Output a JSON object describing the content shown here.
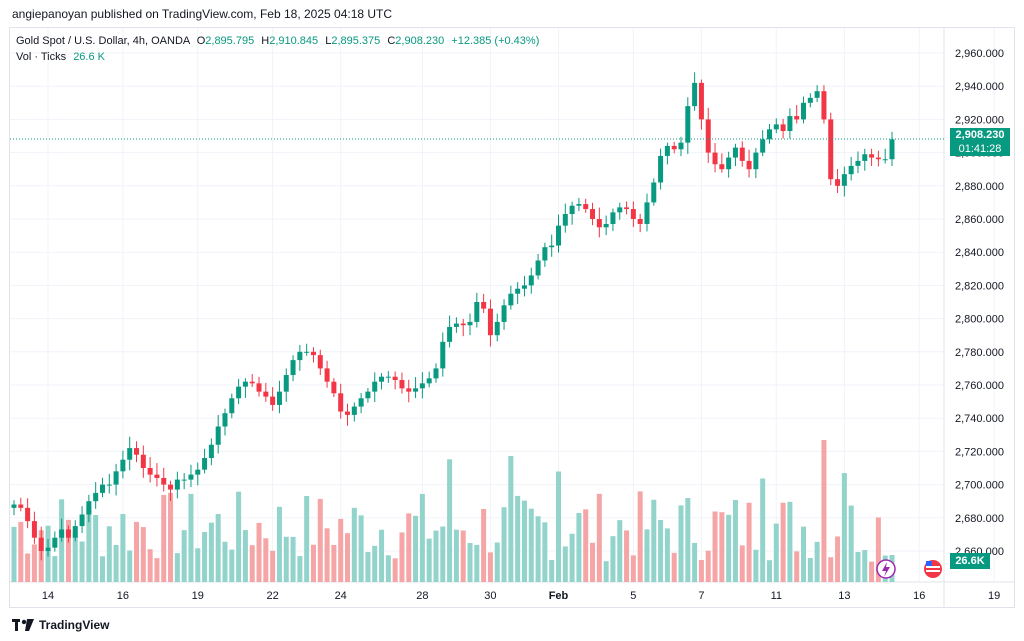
{
  "header": {
    "published_by": "angiepanoyan published on TradingView.com, Feb 18, 2025 04:18 UTC"
  },
  "legend": {
    "symbol": "Gold Spot / U.S. Dollar, 4h, OANDA",
    "o_label": "O",
    "o_value": "2,895.795",
    "h_label": "H",
    "h_value": "2,910.845",
    "l_label": "L",
    "l_value": "2,895.375",
    "c_label": "C",
    "c_value": "2,908.230",
    "change": "+12.385 (+0.43%)",
    "vol_label": "Vol · Ticks",
    "vol_value": "26.6 K"
  },
  "price_tag": {
    "price": "2,908.230",
    "countdown": "01:41:28"
  },
  "vol_tag": "26.6K",
  "footer": {
    "brand": "TradingView"
  },
  "colors": {
    "up": "#089981",
    "down": "#f23645",
    "vol_up": "#92d3cb",
    "vol_down": "#f5a5a5"
  },
  "chart_data": {
    "type": "candlestick",
    "title": "Gold Spot / U.S. Dollar, 4h, OANDA",
    "ylim": [
      2640,
      2970
    ],
    "y_ticks": [
      "2,960.000",
      "2,940.000",
      "2,920.000",
      "2,900.000",
      "2,880.000",
      "2,860.000",
      "2,840.000",
      "2,820.000",
      "2,800.000",
      "2,780.000",
      "2,760.000",
      "2,740.000",
      "2,720.000",
      "2,700.000",
      "2,680.000",
      "2,660.000"
    ],
    "y_tick_values": [
      2960,
      2940,
      2920,
      2900,
      2880,
      2860,
      2840,
      2820,
      2800,
      2780,
      2760,
      2740,
      2720,
      2700,
      2680,
      2660
    ],
    "x_ticks": [
      "14",
      "16",
      "19",
      "22",
      "24",
      "28",
      "30",
      "Feb",
      "5",
      "7",
      "11",
      "13",
      "16",
      "19"
    ],
    "x_tick_index": [
      5,
      16,
      27,
      38,
      48,
      60,
      70,
      80,
      91,
      101,
      112,
      122,
      133,
      144
    ],
    "current_price": 2908.23,
    "ohlc_anchor_closes": [
      2688,
      2686,
      2678,
      2668,
      2660,
      2662,
      2668,
      2673,
      2668,
      2675,
      2682,
      2690,
      2695,
      2700,
      2700,
      2708,
      2715,
      2722,
      2718,
      2710,
      2706,
      2704,
      2700,
      2697,
      2703,
      2703,
      2706,
      2709,
      2716,
      2724,
      2735,
      2743,
      2752,
      2759,
      2762,
      2761,
      2756,
      2753,
      2748,
      2756,
      2766,
      2775,
      2780,
      2780,
      2778,
      2770,
      2762,
      2755,
      2744,
      2742,
      2747,
      2752,
      2756,
      2762,
      2765,
      2765,
      2763,
      2758,
      2756,
      2758,
      2761,
      2764,
      2770,
      2786,
      2795,
      2797,
      2796,
      2798,
      2810,
      2806,
      2790,
      2798,
      2808,
      2815,
      2818,
      2820,
      2826,
      2835,
      2843,
      2844,
      2856,
      2863,
      2868,
      2869,
      2866,
      2860,
      2855,
      2857,
      2864,
      2867,
      2866,
      2860,
      2857,
      2870,
      2882,
      2898,
      2904,
      2902,
      2906,
      2928,
      2942,
      2920,
      2900,
      2893,
      2890,
      2897,
      2903,
      2895,
      2890,
      2900,
      2908,
      2914,
      2917,
      2913,
      2922,
      2920,
      2930,
      2933,
      2937,
      2920,
      2884,
      2880,
      2887,
      2892,
      2895,
      2899,
      2897,
      2896,
      2896,
      2908
    ],
    "volume_unit": "K ticks",
    "volume_max": 140,
    "volume_last": 26.6
  }
}
